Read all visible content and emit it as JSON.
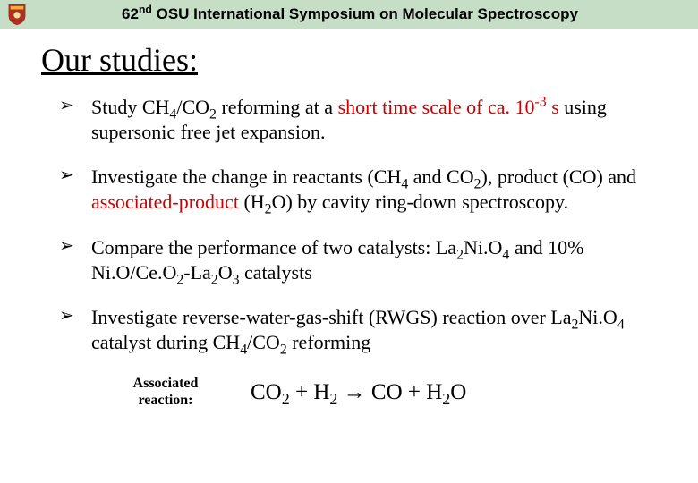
{
  "header": {
    "background_color": "#c6dec6",
    "title_before_sup": "62",
    "title_sup": "nd",
    "title_after_sup": " OSU International Symposium on Molecular Spectroscopy",
    "logo": {
      "shield_color": "#b03020",
      "crest_color": "#f0b030"
    }
  },
  "slide_title": "Our studies:",
  "highlight_color": "#cc0000",
  "bullets": [
    {
      "runs": [
        {
          "t": "Study CH"
        },
        {
          "t": "4",
          "sub": true
        },
        {
          "t": "/CO"
        },
        {
          "t": "2",
          "sub": true
        },
        {
          "t": " reforming at a "
        },
        {
          "t": "short time scale of ca. 10",
          "hl": true
        },
        {
          "t": "-3",
          "hl": true,
          "sup": true
        },
        {
          "t": " s",
          "hl": true
        },
        {
          "t": " using supersonic free jet expansion."
        }
      ]
    },
    {
      "runs": [
        {
          "t": "Investigate the change in reactants (CH"
        },
        {
          "t": "4",
          "sub": true
        },
        {
          "t": " and CO"
        },
        {
          "t": "2",
          "sub": true
        },
        {
          "t": "), product (CO) and "
        },
        {
          "t": "associated-product",
          "hl": true
        },
        {
          "t": " (H"
        },
        {
          "t": "2",
          "sub": true
        },
        {
          "t": "O) by cavity ring-down spectroscopy."
        }
      ]
    },
    {
      "runs": [
        {
          "t": "Compare the performance of  two catalysts: La"
        },
        {
          "t": "2",
          "sub": true
        },
        {
          "t": "Ni.O"
        },
        {
          "t": "4",
          "sub": true
        },
        {
          "t": " and 10% Ni.O/Ce.O"
        },
        {
          "t": "2",
          "sub": true
        },
        {
          "t": "-La"
        },
        {
          "t": "2",
          "sub": true
        },
        {
          "t": "O"
        },
        {
          "t": "3",
          "sub": true
        },
        {
          "t": "  catalysts"
        }
      ]
    },
    {
      "runs": [
        {
          "t": "Investigate reverse-water-gas-shift (RWGS) reaction over La"
        },
        {
          "t": "2",
          "sub": true
        },
        {
          "t": "Ni.O"
        },
        {
          "t": "4",
          "sub": true
        },
        {
          "t": " catalyst during CH"
        },
        {
          "t": "4",
          "sub": true
        },
        {
          "t": "/CO"
        },
        {
          "t": "2",
          "sub": true
        },
        {
          "t": " reforming"
        }
      ]
    }
  ],
  "associated": {
    "label_line1": "Associated",
    "label_line2": "reaction:",
    "equation_runs": [
      {
        "t": "CO"
      },
      {
        "t": "2",
        "sub": true
      },
      {
        "t": " + H"
      },
      {
        "t": "2",
        "sub": true
      },
      {
        "t": "  "
      },
      {
        "t": "→",
        "arrow": true
      },
      {
        "t": "  CO + H"
      },
      {
        "t": "2",
        "sub": true
      },
      {
        "t": "O"
      }
    ]
  }
}
